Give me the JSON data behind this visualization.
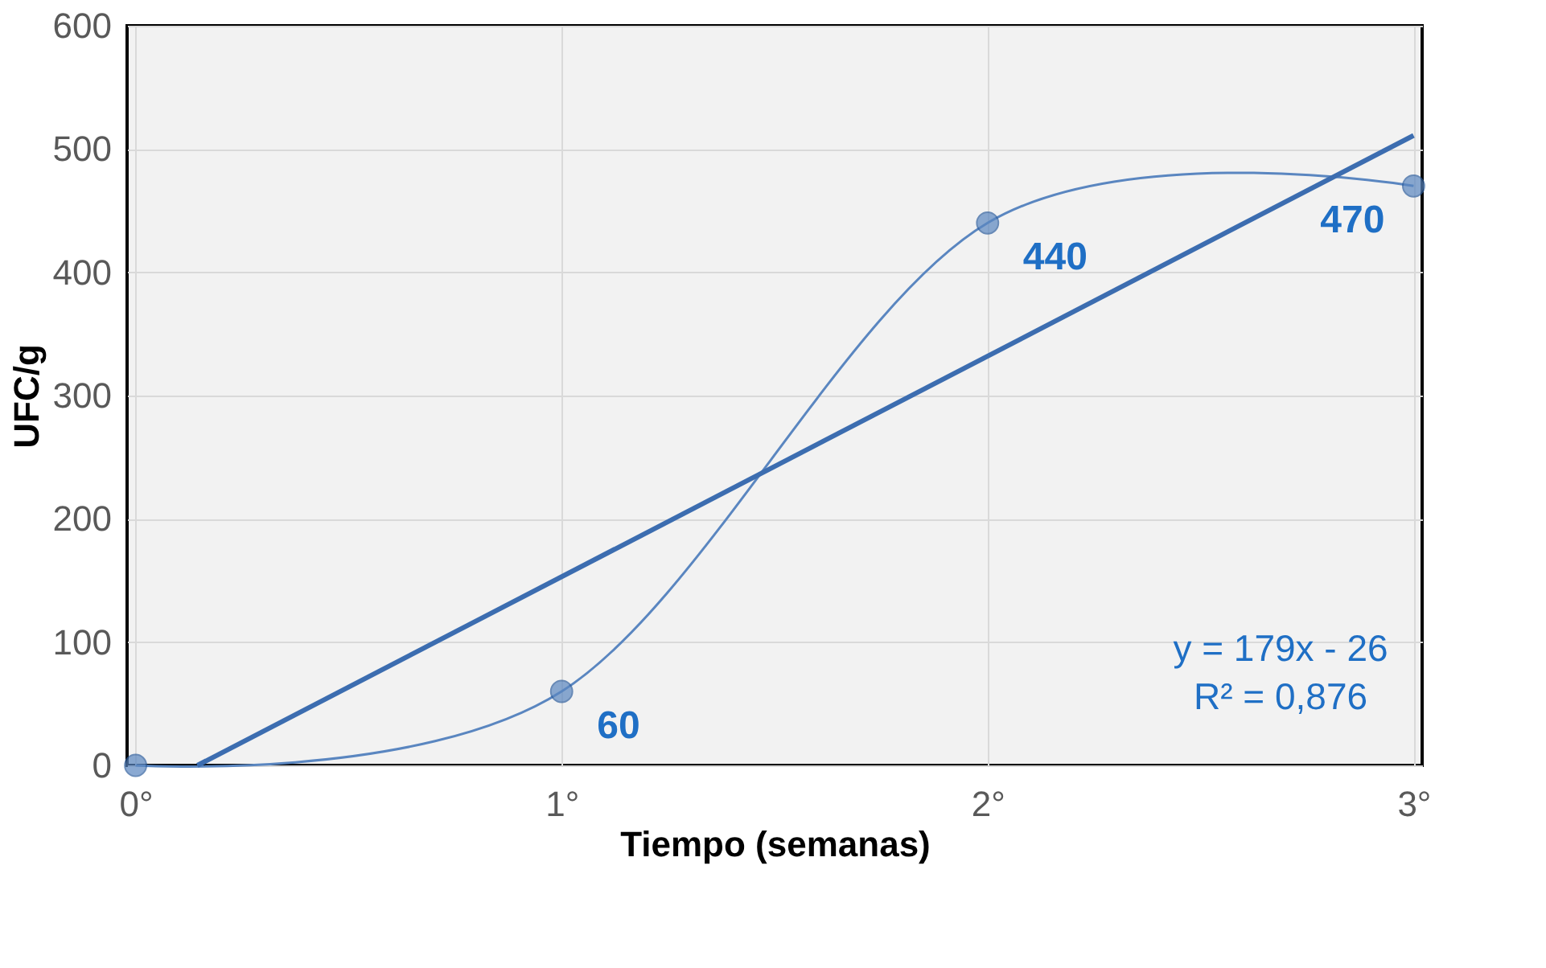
{
  "chart_data": {
    "type": "line",
    "xlabel": "Tiempo (semanas)",
    "ylabel": "UFC/g",
    "x": [
      0,
      1,
      2,
      3
    ],
    "series": [
      {
        "color": "#5a86c0",
        "values": [
          0,
          60,
          440,
          470
        ],
        "marker": "circle",
        "value_labels": [
          null,
          "60",
          "440",
          "470"
        ]
      },
      {
        "color": "#3c6db0",
        "x": [
          0.145,
          3
        ],
        "values": [
          0,
          511
        ],
        "marker": "none"
      }
    ],
    "xlim": [
      -0.02,
      3.02
    ],
    "xticks": [
      {
        "value": 0,
        "label": "0°"
      },
      {
        "value": 1,
        "label": "1°"
      },
      {
        "value": 2,
        "label": "2°"
      },
      {
        "value": 3,
        "label": "3°"
      }
    ],
    "ylim": [
      0,
      600
    ],
    "yticks": [
      0,
      100,
      200,
      300,
      400,
      500,
      600
    ],
    "grid": true,
    "annotations": [
      "y = 179x - 26",
      "R² = 0,876"
    ]
  }
}
